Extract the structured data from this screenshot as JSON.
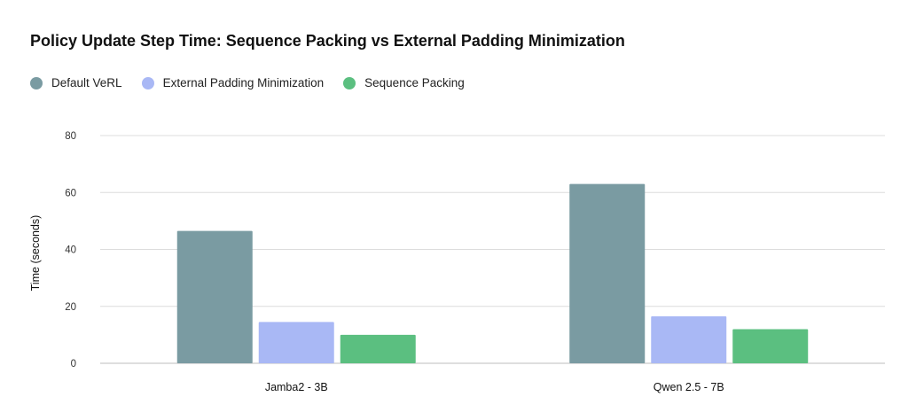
{
  "chart_data": {
    "type": "bar",
    "title": "Policy Update Step Time: Sequence Packing vs External Padding Minimization",
    "xlabel": "",
    "ylabel": "Time (seconds)",
    "ylim": [
      0,
      80
    ],
    "yticks": [
      0,
      20,
      40,
      60,
      80
    ],
    "categories": [
      "Jamba2 - 3B",
      "Qwen 2.5 - 7B"
    ],
    "series": [
      {
        "name": "Default VeRL",
        "color": "#7a9ba2",
        "values": [
          46.5,
          63
        ]
      },
      {
        "name": "External Padding Minimization",
        "color": "#a9b8f5",
        "values": [
          14.5,
          16.5
        ]
      },
      {
        "name": "Sequence Packing",
        "color": "#5bbf80",
        "values": [
          10,
          12
        ]
      }
    ],
    "grid": true,
    "legend_position": "top-left"
  }
}
